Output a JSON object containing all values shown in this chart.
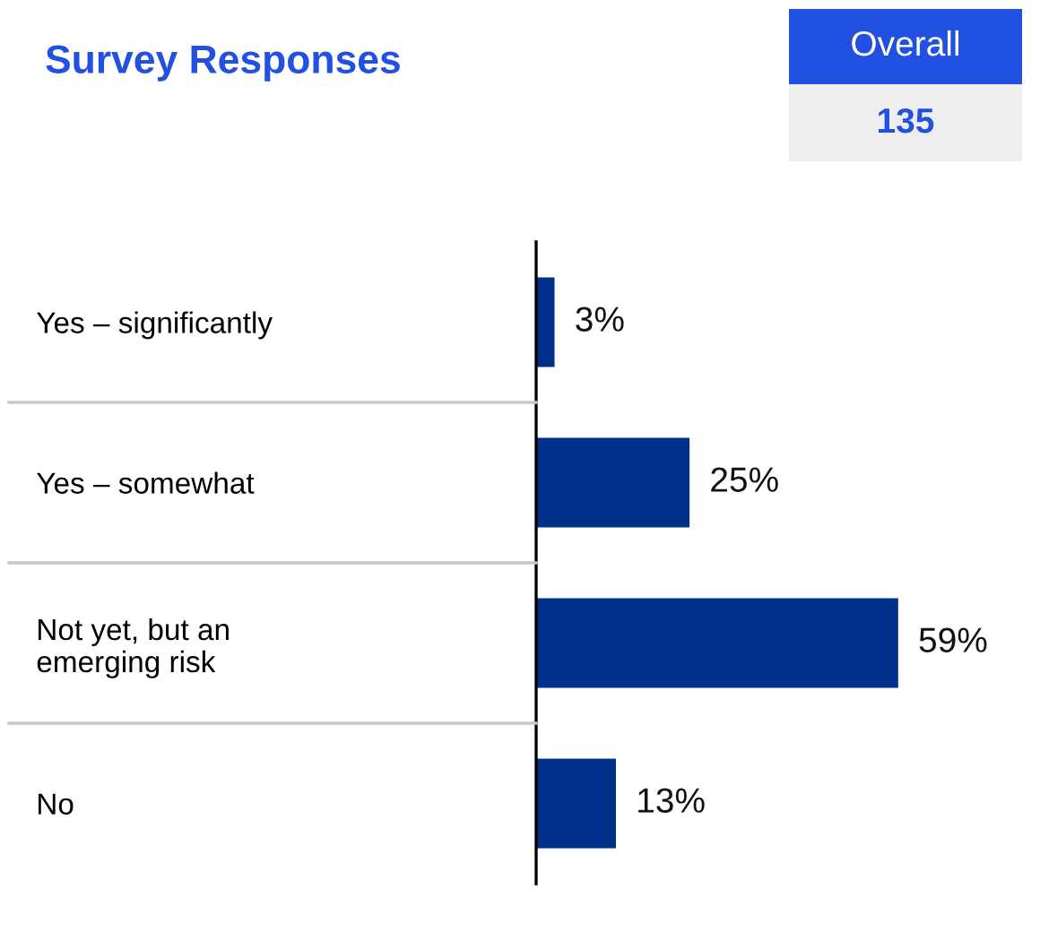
{
  "chart_data": {
    "type": "bar",
    "orientation": "horizontal",
    "title": "Survey Responses",
    "categories": [
      "Yes – significantly",
      "Yes – somewhat",
      "Not yet, but an\nemerging risk",
      "No"
    ],
    "values": [
      3,
      25,
      59,
      13
    ],
    "value_labels": [
      "3%",
      "25%",
      "59%",
      "13%"
    ],
    "color": "#00308a",
    "tick_labels": "y",
    "grid": false,
    "legend": false,
    "annotations": [
      "Overall",
      "135"
    ]
  }
}
